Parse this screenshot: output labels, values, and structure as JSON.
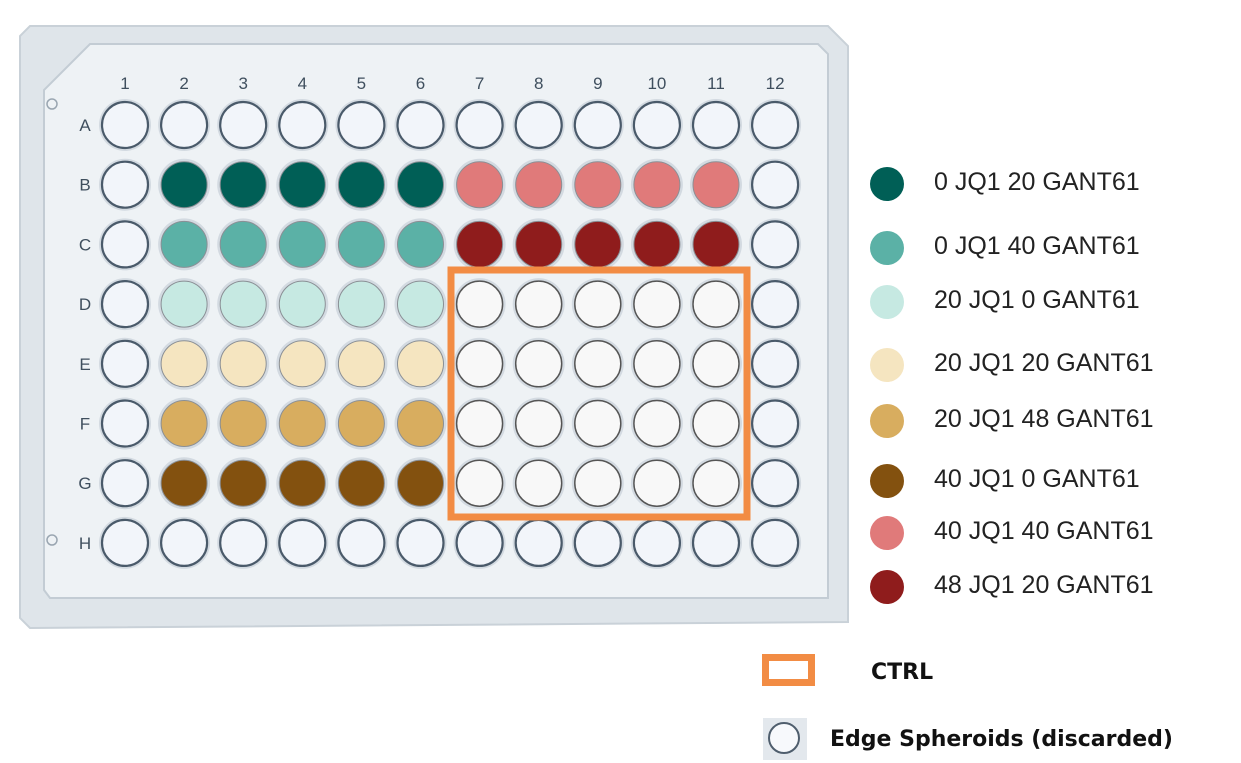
{
  "plate": {
    "columns": [
      "1",
      "2",
      "3",
      "4",
      "5",
      "6",
      "7",
      "8",
      "9",
      "10",
      "11",
      "12"
    ],
    "rows": [
      "A",
      "B",
      "C",
      "D",
      "E",
      "F",
      "G",
      "H"
    ],
    "well_colors": {
      "edge": "#f2f5fa",
      "ctrl": "#f8f8f8",
      "B-2-6": "#005f56",
      "B-7-11": "#e07a7a",
      "C-2-6": "#5bb1a6",
      "C-7-11": "#8f1c1c",
      "D-2-6": "#c6e9e2",
      "E-2-6": "#f5e5c0",
      "F-2-6": "#d8ad5f",
      "G-2-6": "#83510f"
    }
  },
  "legend": [
    {
      "label": "0 JQ1   20 GANT61",
      "color": "#005f56"
    },
    {
      "label": "0 JQ1   40 GANT61",
      "color": "#5bb1a6"
    },
    {
      "label": "20 JQ1   0 GANT61",
      "color": "#c6e9e2"
    },
    {
      "label": "20 JQ1 20 GANT61",
      "color": "#f5e5c0"
    },
    {
      "label": "20 JQ1 48 GANT61",
      "color": "#d8ad5f"
    },
    {
      "label": "40 JQ1   0 GANT61",
      "color": "#83510f"
    },
    {
      "label": "40 JQ1  40 GANT61",
      "color": "#e07a7a"
    },
    {
      "label": "48 JQ1  20 GANT61",
      "color": "#8f1c1c"
    }
  ],
  "key": {
    "ctrl_label": "CTRL",
    "ctrl_color": "#f28c44",
    "edge_label": "Edge Spheroids (discarded)"
  }
}
